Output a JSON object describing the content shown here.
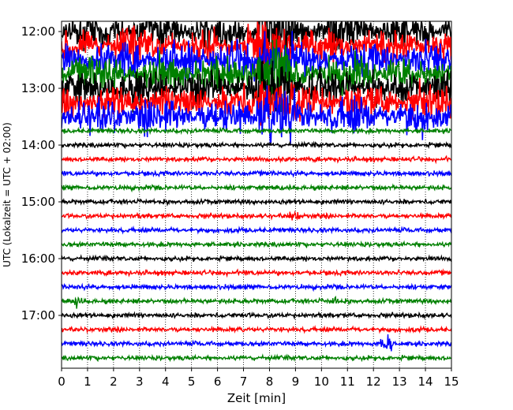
{
  "chart_data": {
    "type": "line",
    "title": "",
    "xlabel": "Zeit  [min]",
    "ylabel": "UTC (Lokalzeit = UTC + 02:00)",
    "xlim": [
      0,
      15
    ],
    "x_ticks": [
      "0",
      "1",
      "2",
      "3",
      "4",
      "5",
      "6",
      "7",
      "8",
      "9",
      "10",
      "11",
      "12",
      "13",
      "14",
      "15"
    ],
    "y_ticks": [
      "12:00",
      "13:00",
      "14:00",
      "15:00",
      "16:00",
      "17:00"
    ],
    "y_tick_hours": [
      12,
      13,
      14,
      15,
      16,
      17
    ],
    "trace_interval_min": 15,
    "start_hour": 12.0,
    "end_hour": 17.75,
    "grid": "vertical-dotted",
    "colors": [
      "#000000",
      "#ff0000",
      "#0000ff",
      "#008000"
    ],
    "noisy_until_hour": 13.75
  }
}
